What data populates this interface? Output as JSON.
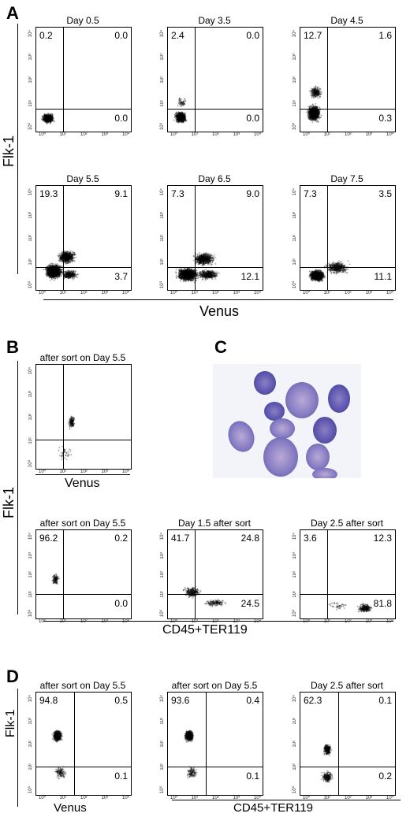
{
  "panels": {
    "A": {
      "letter": "A",
      "ylabel": "Flk-1",
      "xlabel": "Venus",
      "plots": [
        {
          "title": "Day 0.5",
          "q": {
            "ul": "0.2",
            "ur": "0.0",
            "lr": "0.0"
          }
        },
        {
          "title": "Day 3.5",
          "q": {
            "ul": "2.4",
            "ur": "0.0",
            "lr": "0.0"
          }
        },
        {
          "title": "Day 4.5",
          "q": {
            "ul": "12.7",
            "ur": "1.6",
            "lr": "0.3"
          }
        },
        {
          "title": "Day 5.5",
          "q": {
            "ul": "19.3",
            "ur": "9.1",
            "lr": "3.7"
          }
        },
        {
          "title": "Day 6.5",
          "q": {
            "ul": "7.3",
            "ur": "9.0",
            "lr": "12.1"
          }
        },
        {
          "title": "Day 7.5",
          "q": {
            "ul": "7.3",
            "ur": "3.5",
            "lr": "11.1"
          }
        }
      ]
    },
    "B": {
      "letter": "B",
      "ylabel": "Flk-1",
      "top_plot": {
        "title": "after sort on Day 5.5",
        "xlabel": "Venus"
      },
      "xlabel": "CD45+TER119",
      "plots": [
        {
          "title": "after sort on Day 5.5",
          "q": {
            "ul": "96.2",
            "ur": "0.2",
            "lr": "0.0"
          }
        },
        {
          "title": "Day 1.5 after sort",
          "q": {
            "ul": "41.7",
            "ur": "24.8",
            "lr": "24.5"
          }
        },
        {
          "title": "Day 2.5 after sort",
          "q": {
            "ul": "3.6",
            "ur": "12.3",
            "lr": "81.8"
          }
        }
      ]
    },
    "C": {
      "letter": "C"
    },
    "D": {
      "letter": "D",
      "ylabel": "Flk-1",
      "xlabel_left": "Venus",
      "xlabel_right": "CD45+TER119",
      "plots": [
        {
          "title": "after sort on Day 5.5",
          "q": {
            "ul": "94.8",
            "ur": "0.5",
            "lr": "0.1"
          }
        },
        {
          "title": "after sort on Day 5.5",
          "q": {
            "ul": "93.6",
            "ur": "0.4",
            "lr": "0.1"
          }
        },
        {
          "title": "Day 2.5 after sort",
          "q": {
            "ul": "62.3",
            "ur": "0.1",
            "lr": "0.2"
          }
        }
      ]
    }
  },
  "tick_labels": {
    "x": [
      "10⁰",
      "10¹",
      "10²",
      "10³",
      "10⁴"
    ],
    "y": [
      "10⁰",
      "10¹",
      "10²",
      "10³",
      "10⁴"
    ]
  }
}
